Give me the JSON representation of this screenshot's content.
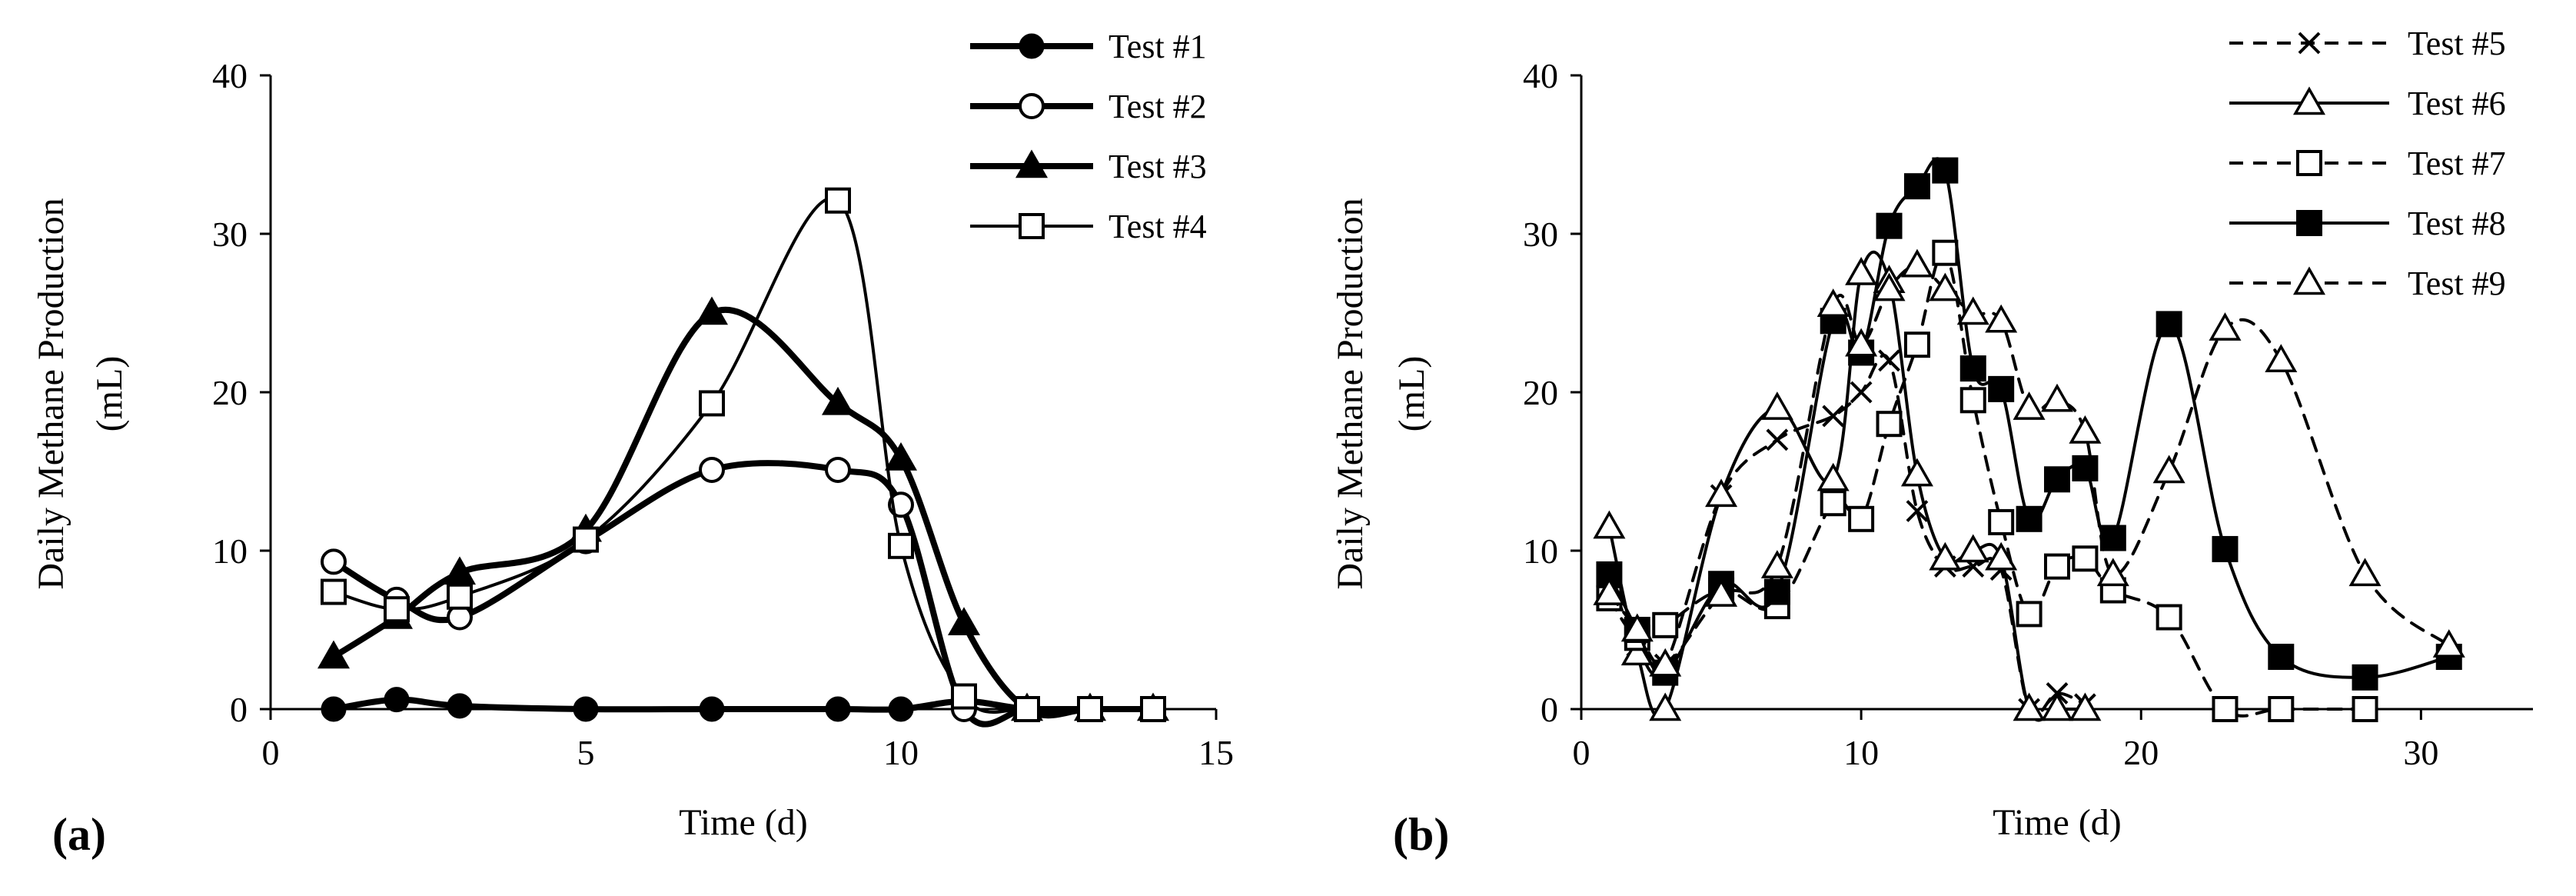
{
  "chart_data": [
    {
      "type": "line",
      "panel_label": "(a)",
      "title": "",
      "xlabel": "Time (d)",
      "ylabel_lines": [
        "Daily Methane Production",
        "(mL)"
      ],
      "xlim": [
        0,
        15
      ],
      "ylim": [
        0,
        40
      ],
      "xticks": [
        0,
        5,
        10,
        15
      ],
      "yticks": [
        0,
        10,
        20,
        30,
        40
      ],
      "legend_position": "top-right",
      "series": [
        {
          "name": "Test #1",
          "marker": "circle-filled",
          "line": "solid-thick",
          "x": [
            1,
            2,
            3,
            5,
            7,
            9,
            10,
            11,
            12,
            13,
            14
          ],
          "y": [
            0,
            0.6,
            0.2,
            0,
            0,
            0,
            0,
            0.5,
            0,
            0,
            0
          ]
        },
        {
          "name": "Test #2",
          "marker": "circle-open",
          "line": "solid-thick",
          "x": [
            1,
            2,
            3,
            5,
            7,
            9,
            10,
            11,
            12,
            13,
            14
          ],
          "y": [
            9.3,
            6.9,
            5.8,
            10.6,
            15.1,
            15.1,
            12.9,
            0,
            0,
            0,
            0
          ]
        },
        {
          "name": "Test #3",
          "marker": "triangle-filled",
          "line": "solid-thick",
          "x": [
            1,
            2,
            3,
            5,
            7,
            9,
            10,
            11,
            12,
            13,
            14
          ],
          "y": [
            3.3,
            5.8,
            8.6,
            11.3,
            25.0,
            19.3,
            15.8,
            5.4,
            0,
            0,
            0
          ]
        },
        {
          "name": "Test #4",
          "marker": "square-open",
          "line": "solid-thin",
          "x": [
            1,
            2,
            3,
            5,
            7,
            9,
            10,
            11,
            12,
            13,
            14
          ],
          "y": [
            7.4,
            6.3,
            7.1,
            10.7,
            19.3,
            32.1,
            10.3,
            0.8,
            0,
            0,
            0
          ]
        }
      ]
    },
    {
      "type": "line",
      "panel_label": "(b)",
      "title": "",
      "xlabel": "Time (d)",
      "ylabel_lines": [
        "Daily Methane Production",
        "(mL)"
      ],
      "xlim": [
        0,
        34
      ],
      "ylim": [
        0,
        40
      ],
      "xticks": [
        0,
        10,
        20,
        30
      ],
      "yticks": [
        0,
        10,
        20,
        30,
        40
      ],
      "legend_position": "top-right",
      "series": [
        {
          "name": "Test #5",
          "marker": "cross",
          "line": "dashed",
          "x": [
            1,
            2,
            3,
            5,
            7,
            9,
            10,
            11,
            12,
            13,
            14,
            15,
            16,
            17,
            18
          ],
          "y": [
            8.5,
            4.0,
            2.8,
            13.5,
            17.0,
            18.5,
            20.0,
            22.0,
            12.5,
            9.0,
            9.0,
            8.8,
            0,
            1.0,
            0.3
          ]
        },
        {
          "name": "Test #6",
          "marker": "triangle-open",
          "line": "solid",
          "x": [
            1,
            2,
            3,
            5,
            7,
            9,
            10,
            11,
            12,
            13,
            14,
            15,
            16,
            17,
            18
          ],
          "y": [
            11.5,
            3.5,
            0,
            13.5,
            19.0,
            14.5,
            27.5,
            27.0,
            14.8,
            9.5,
            10.0,
            9.5,
            0,
            0,
            0
          ]
        },
        {
          "name": "Test #7",
          "marker": "square-open",
          "line": "dashed",
          "x": [
            1,
            2,
            3,
            5,
            7,
            9,
            10,
            11,
            12,
            13,
            14,
            15,
            16,
            17,
            18,
            19,
            21,
            23,
            25,
            28
          ],
          "y": [
            7.0,
            4.5,
            5.3,
            7.5,
            6.5,
            13.0,
            12.0,
            18.0,
            23.0,
            28.8,
            19.5,
            11.8,
            6.0,
            9.0,
            9.5,
            7.5,
            5.8,
            0,
            0,
            0
          ]
        },
        {
          "name": "Test #8",
          "marker": "square-filled",
          "line": "solid",
          "x": [
            1,
            2,
            3,
            5,
            7,
            9,
            10,
            11,
            12,
            13,
            14,
            15,
            16,
            17,
            18,
            19,
            21,
            23,
            25,
            28,
            31
          ],
          "y": [
            8.5,
            5.0,
            2.3,
            7.9,
            7.4,
            24.5,
            22.5,
            30.5,
            33.0,
            34.0,
            21.5,
            20.2,
            12.0,
            14.5,
            15.2,
            10.8,
            24.3,
            10.1,
            3.3,
            2.0,
            3.3
          ]
        },
        {
          "name": "Test #9",
          "marker": "triangle-open",
          "line": "dashed",
          "x": [
            1,
            2,
            3,
            5,
            7,
            9,
            10,
            11,
            12,
            13,
            14,
            15,
            16,
            17,
            18,
            19,
            21,
            23,
            25,
            28,
            31
          ],
          "y": [
            7.3,
            5.0,
            2.8,
            7.2,
            9.0,
            25.5,
            23.0,
            26.5,
            28.0,
            26.5,
            25.0,
            24.5,
            19.0,
            19.5,
            17.5,
            8.5,
            15.0,
            24.0,
            22.0,
            8.5,
            4.0
          ]
        }
      ]
    }
  ]
}
